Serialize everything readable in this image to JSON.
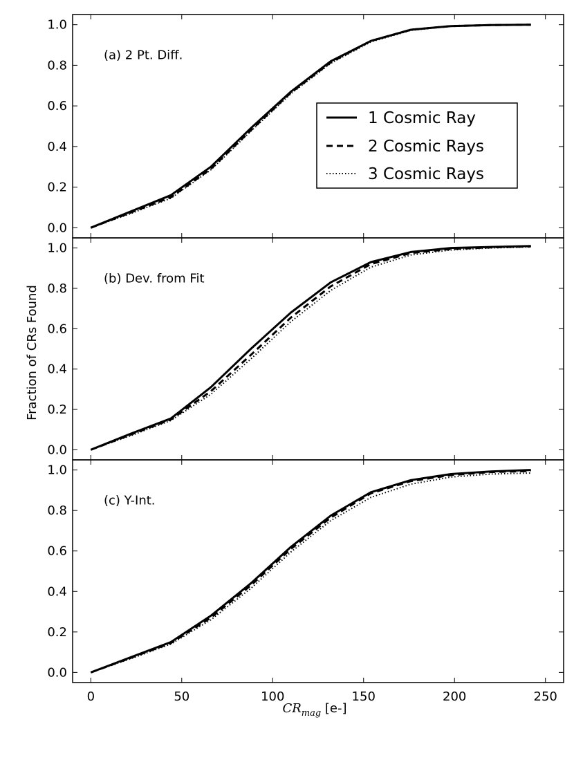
{
  "chart_data": {
    "type": "line",
    "xlabel_main": "CR",
    "xlabel_sub": "mag",
    "xlabel_unit": " [e-]",
    "ylabel": "Fraction of CRs Found",
    "xlim": [
      -10,
      260
    ],
    "xticks": [
      0,
      50,
      100,
      150,
      200,
      250
    ],
    "x": [
      0,
      22,
      44,
      66,
      88,
      110,
      132,
      154,
      176,
      198,
      220,
      242
    ],
    "legend": {
      "placement": "inside-right-of-panel-a",
      "entries": [
        "1 Cosmic Ray",
        "2 Cosmic Rays",
        "3 Cosmic Rays"
      ]
    },
    "panels": [
      {
        "label": "(a) 2 Pt. Diff.",
        "ylim": [
          -0.05,
          1.05
        ],
        "yticks": [
          "0.0",
          "0.2",
          "0.4",
          "0.6",
          "0.8",
          "1.0"
        ],
        "series": [
          {
            "name": "1 Cosmic Ray",
            "style": "solid",
            "values": [
              0,
              0.08,
              0.16,
              0.3,
              0.49,
              0.67,
              0.82,
              0.92,
              0.975,
              0.993,
              0.998,
              1.0
            ]
          },
          {
            "name": "2 Cosmic Rays",
            "style": "dashed",
            "values": [
              0,
              0.075,
              0.15,
              0.29,
              0.48,
              0.665,
              0.815,
              0.92,
              0.975,
              0.993,
              0.998,
              1.0
            ]
          },
          {
            "name": "3 Cosmic Rays",
            "style": "dotted",
            "values": [
              0,
              0.07,
              0.145,
              0.285,
              0.475,
              0.66,
              0.81,
              0.915,
              0.972,
              0.992,
              0.998,
              1.0
            ]
          }
        ]
      },
      {
        "label": "(b) Dev. from Fit",
        "ylim": [
          -0.05,
          1.05
        ],
        "yticks": [
          "0.0",
          "0.2",
          "0.4",
          "0.6",
          "0.8",
          "1.0"
        ],
        "series": [
          {
            "name": "1 Cosmic Ray",
            "style": "solid",
            "values": [
              0,
              0.08,
              0.155,
              0.31,
              0.5,
              0.68,
              0.83,
              0.93,
              0.98,
              1.0,
              1.005,
              1.01
            ]
          },
          {
            "name": "2 Cosmic Rays",
            "style": "dashed",
            "values": [
              0,
              0.075,
              0.15,
              0.29,
              0.47,
              0.655,
              0.81,
              0.92,
              0.975,
              0.995,
              1.003,
              1.008
            ]
          },
          {
            "name": "3 Cosmic Rays",
            "style": "dotted",
            "values": [
              0,
              0.07,
              0.145,
              0.275,
              0.45,
              0.635,
              0.79,
              0.905,
              0.965,
              0.99,
              1.0,
              1.005
            ]
          }
        ]
      },
      {
        "label": "(c) Y-Int.",
        "ylim": [
          -0.05,
          1.05
        ],
        "yticks": [
          "0.0",
          "0.2",
          "0.4",
          "0.6",
          "0.8",
          "1.0"
        ],
        "series": [
          {
            "name": "1 Cosmic Ray",
            "style": "solid",
            "values": [
              0,
              0.075,
              0.15,
              0.28,
              0.44,
              0.62,
              0.775,
              0.89,
              0.95,
              0.98,
              0.993,
              1.0
            ]
          },
          {
            "name": "2 Cosmic Rays",
            "style": "dashed",
            "values": [
              0,
              0.072,
              0.145,
              0.27,
              0.43,
              0.61,
              0.765,
              0.885,
              0.945,
              0.975,
              0.99,
              0.995
            ]
          },
          {
            "name": "3 Cosmic Rays",
            "style": "dotted",
            "values": [
              0,
              0.068,
              0.14,
              0.26,
              0.415,
              0.595,
              0.75,
              0.865,
              0.93,
              0.965,
              0.98,
              0.985
            ]
          }
        ]
      }
    ]
  }
}
